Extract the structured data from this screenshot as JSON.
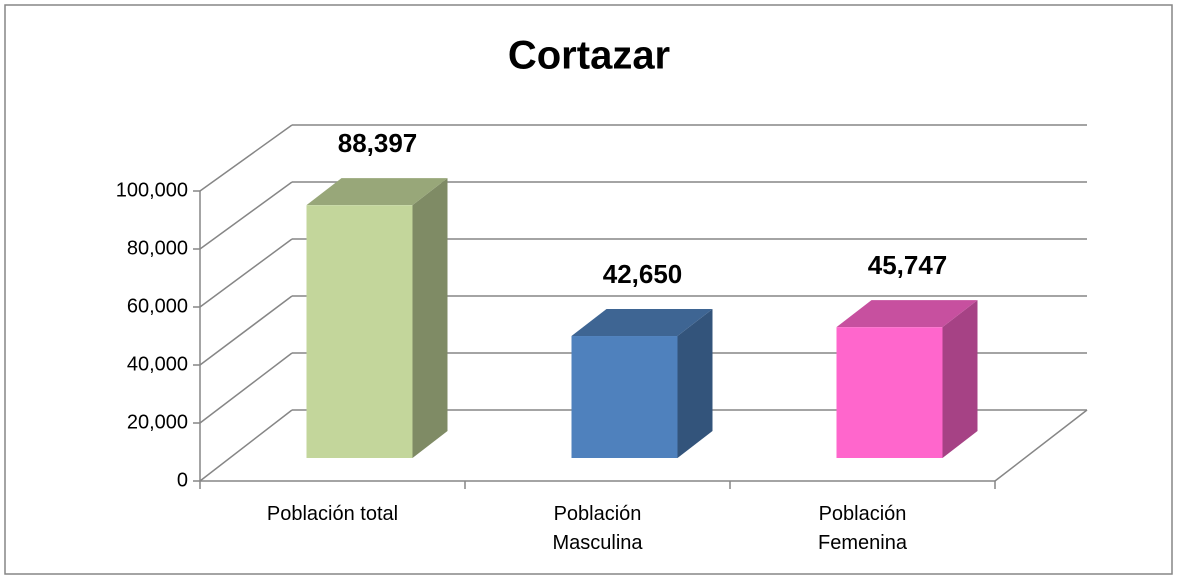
{
  "chart_data": {
    "type": "bar3d",
    "title": "Cortazar",
    "categories": [
      "Población total",
      "Población Masculina",
      "Población Femenina"
    ],
    "values": [
      88397,
      42650,
      45747
    ],
    "value_labels": [
      "88,397",
      "42,650",
      "45,747"
    ],
    "colors": [
      "#c3d69b",
      "#4f81bd",
      "#ff66cc"
    ],
    "ylim": [
      0,
      100000
    ],
    "yticks": [
      0,
      {
        "value": 20000,
        "label": "20,000"
      },
      {
        "value": 40000,
        "label": "40,000"
      },
      {
        "value": 60000,
        "label": "60,000"
      },
      {
        "value": 80000,
        "label": "80,000"
      },
      {
        "value": 100000,
        "label": "100,000"
      }
    ],
    "grid": true
  }
}
